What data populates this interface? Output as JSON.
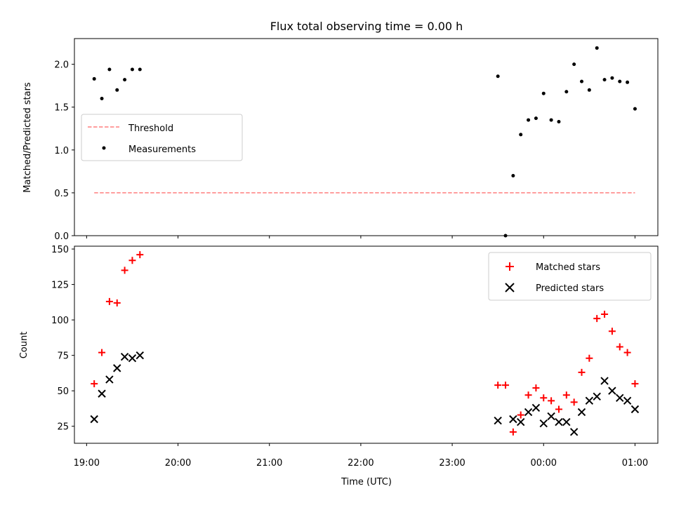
{
  "title": "Flux total observing time = 0.00 h",
  "colors": {
    "threshold": "#ff7f7f",
    "measurement": "#000000",
    "matched": "#ff0000",
    "predicted": "#000000"
  },
  "chart_data": [
    {
      "type": "scatter",
      "ylabel": "Matched/Predicted stars",
      "ylim": [
        0,
        2.3
      ],
      "yticks": [
        0.0,
        0.5,
        1.0,
        1.5,
        2.0
      ],
      "ytick_labels": [
        "0.0",
        "0.5",
        "1.0",
        "1.5",
        "2.0"
      ],
      "legend": {
        "placement": "center-left",
        "entries": [
          "Threshold",
          "Measurements"
        ]
      },
      "threshold": {
        "name": "Threshold",
        "value": 0.5,
        "x_start": "19:05",
        "x_end": "01:00",
        "style": "dashed"
      },
      "series": [
        {
          "name": "Measurements",
          "x": [
            "19:05",
            "19:10",
            "19:15",
            "19:20",
            "19:25",
            "19:30",
            "19:35",
            "23:30",
            "23:35",
            "23:40",
            "23:45",
            "23:50",
            "23:55",
            "00:00",
            "00:05",
            "00:10",
            "00:15",
            "00:20",
            "00:25",
            "00:30",
            "00:35",
            "00:40",
            "00:45",
            "00:50",
            "00:55",
            "01:00"
          ],
          "y": [
            1.83,
            1.6,
            1.94,
            1.7,
            1.82,
            1.94,
            1.94,
            1.86,
            0.0,
            0.7,
            1.18,
            1.35,
            1.37,
            1.66,
            1.35,
            1.33,
            1.68,
            2.0,
            1.8,
            1.7,
            2.19,
            1.82,
            1.84,
            1.8,
            1.79,
            1.48
          ]
        }
      ]
    },
    {
      "type": "scatter",
      "ylabel": "Count",
      "xlabel": "Time (UTC)",
      "ylim": [
        13,
        152
      ],
      "yticks": [
        25,
        50,
        75,
        100,
        125,
        150
      ],
      "ytick_labels": [
        "25",
        "50",
        "75",
        "100",
        "125",
        "150"
      ],
      "xlim": [
        "18:52",
        "01:15"
      ],
      "xticks": [
        "19:00",
        "20:00",
        "21:00",
        "22:00",
        "23:00",
        "00:00",
        "01:00"
      ],
      "xtick_labels": [
        "19:00",
        "20:00",
        "21:00",
        "22:00",
        "23:00",
        "00:00",
        "01:00"
      ],
      "legend": {
        "placement": "top-right",
        "entries": [
          "Matched stars",
          "Predicted stars"
        ]
      },
      "series": [
        {
          "name": "Matched stars",
          "x": [
            "19:05",
            "19:10",
            "19:15",
            "19:20",
            "19:25",
            "19:30",
            "19:35",
            "23:30",
            "23:35",
            "23:40",
            "23:45",
            "23:50",
            "23:55",
            "00:00",
            "00:05",
            "00:10",
            "00:15",
            "00:20",
            "00:25",
            "00:30",
            "00:35",
            "00:40",
            "00:45",
            "00:50",
            "00:55",
            "01:00"
          ],
          "y": [
            55,
            77,
            113,
            112,
            135,
            142,
            146,
            54,
            54,
            21,
            33,
            47,
            52,
            45,
            43,
            37,
            47,
            42,
            63,
            73,
            101,
            104,
            92,
            81,
            77,
            55
          ]
        },
        {
          "name": "Predicted stars",
          "x": [
            "19:05",
            "19:10",
            "19:15",
            "19:20",
            "19:25",
            "19:30",
            "19:35",
            "23:30",
            "23:40",
            "23:45",
            "23:50",
            "23:55",
            "00:00",
            "00:05",
            "00:10",
            "00:15",
            "00:20",
            "00:25",
            "00:30",
            "00:35",
            "00:40",
            "00:45",
            "00:50",
            "00:55",
            "01:00"
          ],
          "y": [
            30,
            48,
            58,
            66,
            74,
            73,
            75,
            29,
            30,
            28,
            35,
            38,
            27,
            32,
            28,
            28,
            21,
            35,
            43,
            46,
            57,
            50,
            45,
            43,
            37
          ]
        }
      ]
    }
  ]
}
